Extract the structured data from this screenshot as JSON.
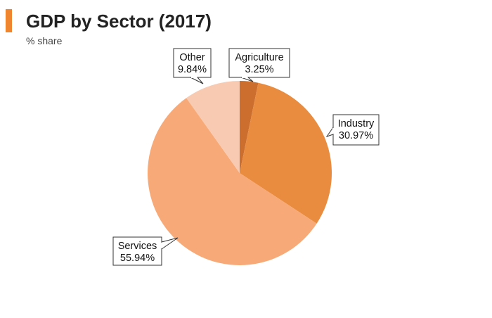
{
  "header": {
    "title": "GDP by Sector (2017)",
    "subtitle": "% share",
    "accent_color": "#f08530"
  },
  "chart_data": {
    "type": "pie",
    "title": "GDP by Sector (2017)",
    "subtitle": "% share",
    "slices": [
      {
        "label": "Agriculture",
        "value": 3.25,
        "value_label": "3.25%",
        "color": "#cc6f2e"
      },
      {
        "label": "Industry",
        "value": 30.97,
        "value_label": "30.97%",
        "color": "#e98c3f"
      },
      {
        "label": "Services",
        "value": 55.94,
        "value_label": "55.94%",
        "color": "#f7aa77"
      },
      {
        "label": "Other",
        "value": 9.84,
        "value_label": "9.84%",
        "color": "#f8cab1"
      }
    ]
  }
}
